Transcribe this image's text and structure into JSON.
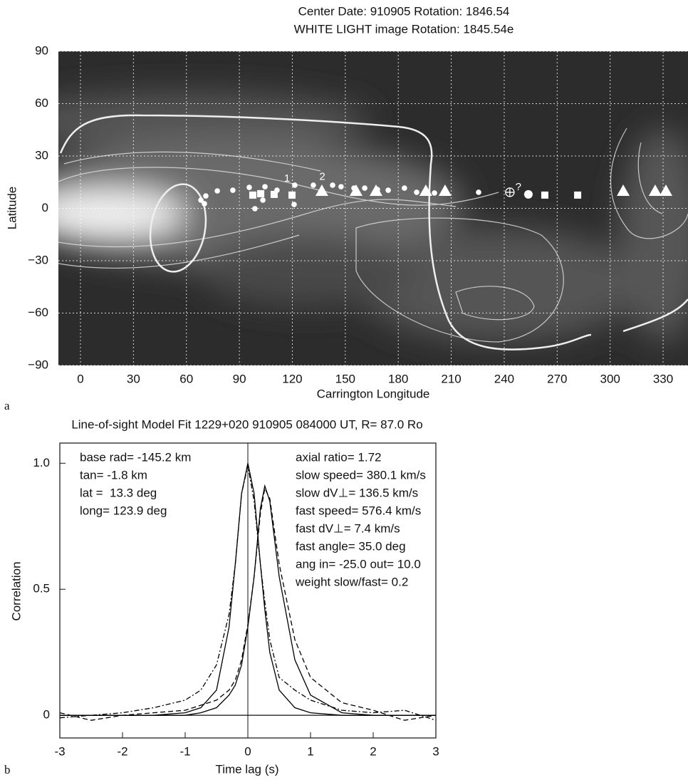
{
  "chart_data": [
    {
      "type": "scatter",
      "title": [
        "Center Date: 910905 Rotation: 1846.54",
        "WHITE LIGHT image Rotation: 1845.54e"
      ],
      "panel_label": "a",
      "xlabel": "Carrington Longitude",
      "ylabel": "Latitude",
      "xlim": [
        -12.5,
        344.1
      ],
      "ylim": [
        -90,
        90
      ],
      "xticks": [
        0,
        30,
        60,
        90,
        120,
        150,
        180,
        210,
        240,
        270,
        300,
        330
      ],
      "yticks": [
        90,
        60,
        30,
        0,
        {
          "value": -30,
          "label": "−30"
        },
        {
          "value": -60,
          "label": "−60"
        },
        {
          "value": -90,
          "label": "−90"
        }
      ],
      "grid": true,
      "series": [
        {
          "marker": "circle",
          "color": "#ffffff",
          "x": [
            68.2,
            71.0,
            77.5,
            86.3,
            95.6,
            104.5,
            111.3,
            121.4,
            131.9,
            142.8,
            147.6,
            154.9,
            161.0,
            168.2,
            174.3,
            183.5,
            190.4,
            200.5,
            225.5,
            98.8,
            121.0,
            103.3,
            70.2
          ],
          "y": [
            4.7,
            7.1,
            10.0,
            10.4,
            12.0,
            12.4,
            10.4,
            13.3,
            13.3,
            13.3,
            12.4,
            11.6,
            11.6,
            10.8,
            10.4,
            11.6,
            9.2,
            8.8,
            9.2,
            -0.2,
            2.2,
            4.7,
            2.7
          ]
        },
        {
          "marker": "circle-large",
          "color": "#ffffff",
          "x": [
            253.7
          ],
          "y": [
            8.0
          ]
        },
        {
          "marker": "circle-plus",
          "color": "#ffffff",
          "x": [
            243.2
          ],
          "y": [
            9.2
          ]
        },
        {
          "marker": "square",
          "color": "#ffffff",
          "x": [
            97.6,
            102.1,
            109.7,
            119.8,
            263.0,
            281.6
          ],
          "y": [
            7.6,
            8.4,
            8.0,
            7.6,
            7.6,
            7.6
          ]
        },
        {
          "marker": "triangle",
          "color": "#ffffff",
          "x": [
            136.7,
            156.1,
            167.4,
            195.6,
            206.5,
            307.4,
            325.5,
            331.6
          ],
          "y": [
            10,
            10,
            10,
            10,
            10,
            10,
            10,
            10
          ]
        }
      ],
      "annotations": [
        {
          "text": "1",
          "x": 117,
          "y": 17
        },
        {
          "text": "2",
          "x": 137,
          "y": 18
        },
        {
          "text": "?",
          "x": 248,
          "y": 12
        }
      ]
    },
    {
      "type": "line",
      "title": "Line-of-sight Model Fit 1229+020 910905 084000 UT, R= 87.0 Ro",
      "panel_label": "b",
      "xlabel": "Time lag (s)",
      "ylabel": "Correlation",
      "xlim": [
        -3,
        3
      ],
      "ylim": [
        -0.09,
        1.08
      ],
      "xticks": [
        -3,
        -2,
        -1,
        0,
        1,
        2,
        3
      ],
      "yticks": [
        0,
        0.5,
        {
          "value": 1,
          "label": "1.0"
        }
      ],
      "grid": false,
      "x": [
        -3,
        -2.5,
        -2,
        -1.5,
        -1,
        -0.75,
        -0.5,
        -0.3,
        -0.2,
        -0.1,
        0,
        0.1,
        0.2,
        0.27,
        0.35,
        0.5,
        0.75,
        1,
        1.5,
        2,
        2.5,
        3
      ],
      "series": [
        {
          "color": "#000000",
          "dash": "solid",
          "values": [
            0,
            0,
            0,
            0,
            0.01,
            0.03,
            0.1,
            0.35,
            0.6,
            0.88,
            1.0,
            0.88,
            0.6,
            0.42,
            0.25,
            0.1,
            0.03,
            0.01,
            0,
            0,
            0,
            0
          ]
        },
        {
          "color": "#000000",
          "dash": "dashdot",
          "values": [
            -0.01,
            0,
            0.01,
            0.03,
            0.06,
            0.1,
            0.2,
            0.4,
            0.6,
            0.88,
            0.99,
            0.85,
            0.6,
            0.45,
            0.3,
            0.15,
            0.1,
            0.06,
            0.02,
            0.01,
            0.02,
            -0.02
          ]
        },
        {
          "color": "#000000",
          "dash": "solid",
          "values": [
            0,
            0,
            0,
            0,
            0,
            0.01,
            0.03,
            0.08,
            0.12,
            0.2,
            0.35,
            0.55,
            0.82,
            0.91,
            0.85,
            0.55,
            0.22,
            0.08,
            0.01,
            0,
            0,
            0
          ]
        },
        {
          "color": "#000000",
          "dash": "dashed",
          "values": [
            0.01,
            -0.02,
            0,
            0.01,
            0.02,
            0.04,
            0.06,
            0.1,
            0.14,
            0.22,
            0.36,
            0.55,
            0.8,
            0.9,
            0.86,
            0.6,
            0.3,
            0.15,
            0.05,
            0.02,
            -0.02,
            0
          ]
        }
      ],
      "annotations_left": [
        "base rad= -145.2 km",
        "tan= -1.8 km",
        "lat =  13.3 deg",
        "long= 123.9 deg"
      ],
      "annotations_right": [
        "axial ratio= 1.72",
        "slow speed= 380.1 km/s",
        "slow dV⊥= 136.5 km/s",
        "fast speed= 576.4 km/s",
        "fast dV⊥= 7.4 km/s",
        "fast angle= 35.0 deg",
        "ang in= -25.0 out= 10.0",
        "weight slow/fast= 0.2"
      ]
    }
  ]
}
